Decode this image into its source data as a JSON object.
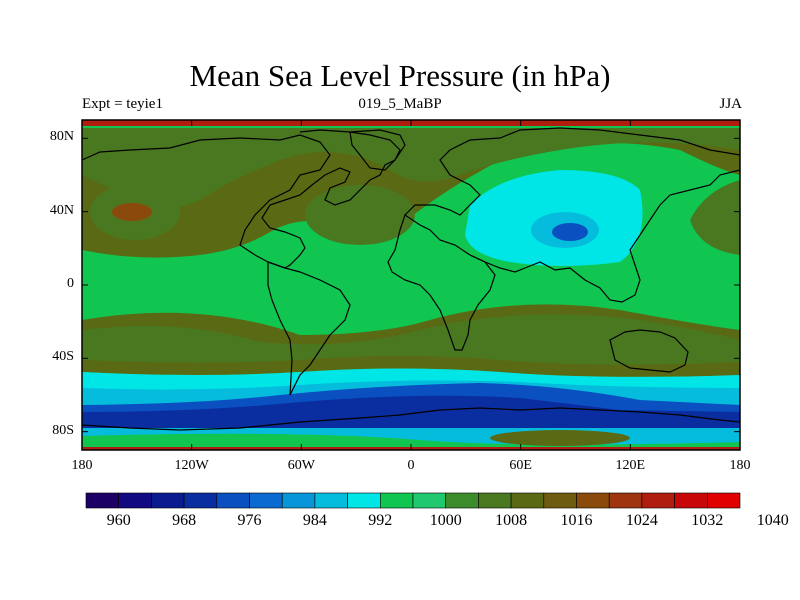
{
  "title": "Mean Sea Level Pressure (in hPa)",
  "subtitle": {
    "left": "Expt = teyie1",
    "center": "019_5_MaBP",
    "right": "JJA"
  },
  "map": {
    "projection": "cylindrical-equidistant",
    "lon_range": [
      -180,
      180
    ],
    "lat_range": [
      -90,
      90
    ],
    "y_ticks": [
      {
        "lat": 80,
        "label": "80N"
      },
      {
        "lat": 40,
        "label": "40N"
      },
      {
        "lat": 0,
        "label": "0"
      },
      {
        "lat": -40,
        "label": "40S"
      },
      {
        "lat": -80,
        "label": "80S"
      }
    ],
    "x_ticks": [
      {
        "lon": -180,
        "label": "180"
      },
      {
        "lon": -120,
        "label": "120W"
      },
      {
        "lon": -60,
        "label": "60W"
      },
      {
        "lon": 0,
        "label": "0"
      },
      {
        "lon": 60,
        "label": "60E"
      },
      {
        "lon": 120,
        "label": "120E"
      },
      {
        "lon": 180,
        "label": "180"
      }
    ]
  },
  "colorbar": {
    "colors": [
      "#1d0066",
      "#110a80",
      "#0a1a8f",
      "#0a2ea0",
      "#0a50c0",
      "#0a6ad0",
      "#0896d8",
      "#06bcdc",
      "#00e6e6",
      "#10c650",
      "#20c870",
      "#3c8c2c",
      "#4a7820",
      "#5a6a14",
      "#6e5c10",
      "#8a4a0c",
      "#9e3410",
      "#b01e10",
      "#c80808",
      "#e00000"
    ],
    "labels": [
      "960",
      "968",
      "976",
      "984",
      "992",
      "1000",
      "1008",
      "1016",
      "1024",
      "1032",
      "1040"
    ],
    "label_slot_index": [
      1,
      3,
      5,
      7,
      9,
      11,
      13,
      15,
      17,
      19,
      21
    ]
  },
  "colors": {
    "land_outline": "#000000",
    "frame": "#000000"
  }
}
